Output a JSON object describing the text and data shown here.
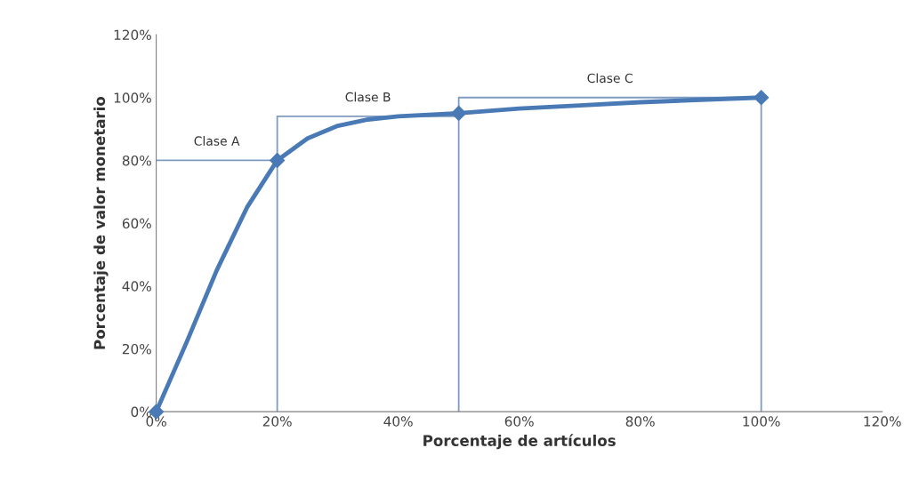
{
  "chart_data": {
    "type": "line",
    "xlabel": "Porcentaje de artículos",
    "ylabel": "Porcentaje de valor monetario",
    "x": [
      0,
      20,
      50,
      100
    ],
    "series": [
      {
        "color": "#4a7ab5",
        "marker": "none",
        "x": [
          0,
          5,
          10,
          15,
          20,
          25,
          30,
          35,
          40,
          50,
          60,
          70,
          80,
          90,
          100
        ],
        "values": [
          0,
          22,
          45,
          65,
          80,
          87,
          91,
          93,
          94,
          95,
          96.5,
          97.5,
          98.5,
          99.3,
          100
        ]
      },
      {
        "type": "scatter",
        "color": "#4a7ab5",
        "values": [
          0,
          80,
          95,
          100
        ]
      },
      {
        "color": "#7f9cc0",
        "marker": "none",
        "x": [
          0,
          20,
          20,
          20,
          50,
          50,
          50,
          100,
          100
        ],
        "values": [
          80,
          80,
          0,
          94,
          94,
          0,
          100,
          100,
          0
        ]
      }
    ],
    "marker": "diamond",
    "line_style": "solid",
    "grid": false,
    "legend": false,
    "xlim": [
      0,
      120
    ],
    "ylim": [
      0,
      120
    ],
    "xticks": [
      {
        "value": 0,
        "label": "0%"
      },
      {
        "value": 20,
        "label": "20%"
      },
      {
        "value": 40,
        "label": "40%"
      },
      {
        "value": 60,
        "label": "60%"
      },
      {
        "value": 80,
        "label": "80%"
      },
      {
        "value": 100,
        "label": "100%"
      },
      {
        "value": 120,
        "label": "120%"
      }
    ],
    "yticks": [
      {
        "value": 0,
        "label": "0%"
      },
      {
        "value": 20,
        "label": "20%"
      },
      {
        "value": 40,
        "label": "40%"
      },
      {
        "value": 60,
        "label": "60%"
      },
      {
        "value": 80,
        "label": "80%"
      },
      {
        "value": 100,
        "label": "100%"
      },
      {
        "value": 120,
        "label": "120%"
      }
    ],
    "annotations": [
      "Clase A",
      "Clase B",
      "Clase C"
    ]
  }
}
